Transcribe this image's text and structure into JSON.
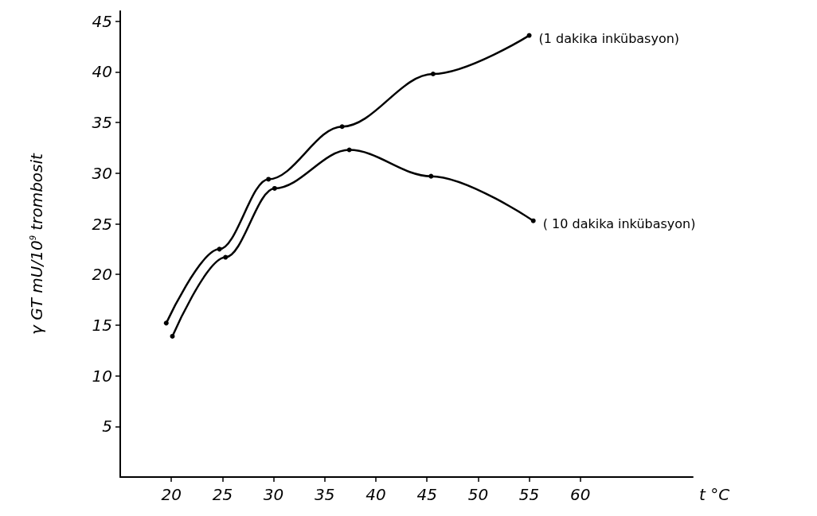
{
  "chart_data": {
    "type": "line",
    "xlabel": "t °C",
    "ylabel": "γ GT mU/10$^{9}$ trombosit",
    "xlim": [
      15,
      71
    ],
    "xticks": [
      20,
      25,
      30,
      35,
      40,
      45,
      50,
      55,
      60
    ],
    "ylim": [
      0,
      46
    ],
    "yticks": [
      5,
      10,
      15,
      20,
      25,
      30,
      35,
      40,
      45
    ],
    "grid": false,
    "legend": false,
    "marker": "circle",
    "line_style": "solid",
    "series": [
      {
        "name": "(1 dakika inkübasyon)",
        "color": "#000000",
        "x": [
          19.5,
          24.7,
          29.5,
          36.7,
          45.6,
          55.0
        ],
        "values": [
          15.2,
          22.5,
          29.4,
          34.6,
          39.8,
          43.6
        ]
      },
      {
        "name": "( 10 dakika inkübasyon)",
        "color": "#000000",
        "x": [
          20.1,
          25.3,
          30.1,
          37.4,
          45.4,
          55.4
        ],
        "values": [
          13.9,
          21.7,
          28.5,
          32.3,
          29.7,
          25.3
        ]
      }
    ]
  }
}
